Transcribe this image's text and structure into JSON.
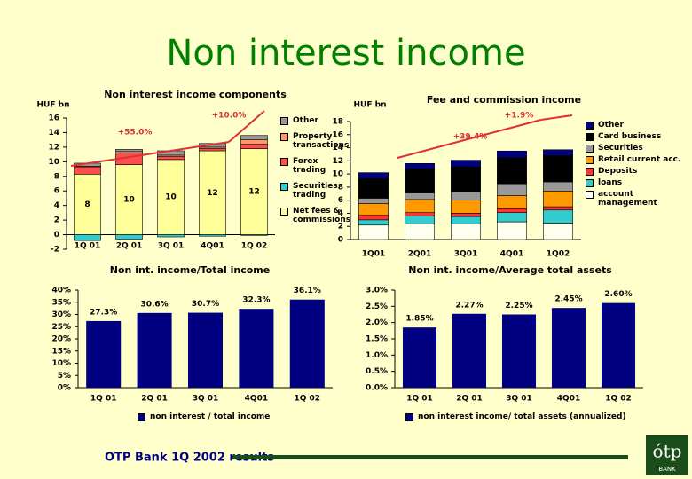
{
  "page": {
    "title": "Non interest income",
    "footer": "OTP Bank 1Q 2002 results",
    "logo": "BANK"
  },
  "chart_data": [
    {
      "type": "stacked_bar",
      "title": "Non interest income components",
      "ylabel": "HUF bn",
      "annotations": [
        "+55.0%",
        "+10.0%"
      ],
      "categories": [
        "1Q 01",
        "2Q 01",
        "3Q 01",
        "4Q01",
        "1Q 02"
      ],
      "ylim": [
        -2,
        16
      ],
      "yticks": [
        -2,
        0,
        2,
        4,
        6,
        8,
        10,
        12,
        14,
        16
      ],
      "series": [
        {
          "name": "Net fees & commissions",
          "color": "#ffff99",
          "values": [
            8.3,
            9.6,
            10.3,
            11.5,
            11.8
          ],
          "value_labels": [
            "8",
            "10",
            "10",
            "12",
            "12"
          ]
        },
        {
          "name": "Securities trading",
          "color": "#33cccc",
          "values": [
            -0.8,
            -0.6,
            -0.3,
            -0.2,
            -0.1
          ]
        },
        {
          "name": "Forex trading",
          "color": "#ff4d4d",
          "values": [
            1.0,
            1.6,
            0.4,
            0.3,
            0.6
          ]
        },
        {
          "name": "Property transactions",
          "color": "#ff9966",
          "values": [
            0.1,
            0.2,
            0.2,
            0.2,
            0.6
          ]
        },
        {
          "name": "Other",
          "color": "#999999",
          "values": [
            0.4,
            0.3,
            0.6,
            0.5,
            0.6
          ]
        }
      ]
    },
    {
      "type": "stacked_bar",
      "title": "Fee and commission income",
      "ylabel": "HUF bn",
      "annotations": [
        "+39.4%",
        "+1.9%"
      ],
      "categories": [
        "1Q01",
        "2Q01",
        "3Q01",
        "4Q01",
        "1Q02"
      ],
      "ylim": [
        0,
        18
      ],
      "yticks": [
        0,
        2,
        4,
        6,
        8,
        10,
        12,
        14,
        16,
        18
      ],
      "series": [
        {
          "name": "account management",
          "color": "#ffffee",
          "values": [
            2.2,
            2.4,
            2.4,
            2.7,
            2.5
          ]
        },
        {
          "name": "loans",
          "color": "#33cccc",
          "values": [
            0.8,
            1.2,
            1.1,
            1.4,
            2.0
          ]
        },
        {
          "name": "Deposits",
          "color": "#ff3333",
          "values": [
            0.7,
            0.5,
            0.5,
            0.6,
            0.5
          ]
        },
        {
          "name": "Retail current acc.",
          "color": "#ff9900",
          "values": [
            1.8,
            2.0,
            2.0,
            2.0,
            2.4
          ]
        },
        {
          "name": "Securities",
          "color": "#999999",
          "values": [
            0.8,
            1.0,
            1.3,
            1.8,
            1.4
          ]
        },
        {
          "name": "Card business",
          "color": "#000000",
          "values": [
            3.0,
            3.7,
            3.8,
            4.0,
            4.0
          ]
        },
        {
          "name": "Other",
          "color": "#000080",
          "values": [
            0.9,
            0.8,
            1.0,
            1.0,
            0.9
          ]
        }
      ]
    },
    {
      "type": "bar",
      "title": "Non int. income/Total income",
      "categories": [
        "1Q 01",
        "2Q 01",
        "3Q 01",
        "4Q01",
        "1Q 02"
      ],
      "ylim": [
        0,
        40
      ],
      "yticks": [
        {
          "value": 0,
          "label": "0%"
        },
        {
          "value": 5,
          "label": "5%"
        },
        {
          "value": 10,
          "label": "10%"
        },
        {
          "value": 15,
          "label": "15%"
        },
        {
          "value": 20,
          "label": "20%"
        },
        {
          "value": 25,
          "label": "25%"
        },
        {
          "value": 30,
          "label": "30%"
        },
        {
          "value": 35,
          "label": "35%"
        },
        {
          "value": 40,
          "label": "40%"
        }
      ],
      "series": [
        {
          "name": "non interest / total income",
          "color": "#000080",
          "values": [
            27.3,
            30.6,
            30.7,
            32.3,
            36.1
          ],
          "value_labels": [
            "27.3%",
            "30.6%",
            "30.7%",
            "32.3%",
            "36.1%"
          ]
        }
      ]
    },
    {
      "type": "bar",
      "title": "Non int. income/Average total assets",
      "categories": [
        "1Q 01",
        "2Q 01",
        "3Q 01",
        "4Q01",
        "1Q 02"
      ],
      "ylim": [
        0,
        3
      ],
      "yticks": [
        {
          "value": 0,
          "label": "0.0%"
        },
        {
          "value": 0.5,
          "label": "0.5%"
        },
        {
          "value": 1,
          "label": "1.0%"
        },
        {
          "value": 1.5,
          "label": "1.5%"
        },
        {
          "value": 2,
          "label": "2.0%"
        },
        {
          "value": 2.5,
          "label": "2.5%"
        },
        {
          "value": 3,
          "label": "3.0%"
        }
      ],
      "series": [
        {
          "name": "non interest income/ total assets (annualized)",
          "color": "#000080",
          "values": [
            1.85,
            2.27,
            2.25,
            2.45,
            2.6
          ],
          "value_labels": [
            "1.85%",
            "2.27%",
            "2.25%",
            "2.45%",
            "2.60%"
          ]
        }
      ]
    }
  ]
}
